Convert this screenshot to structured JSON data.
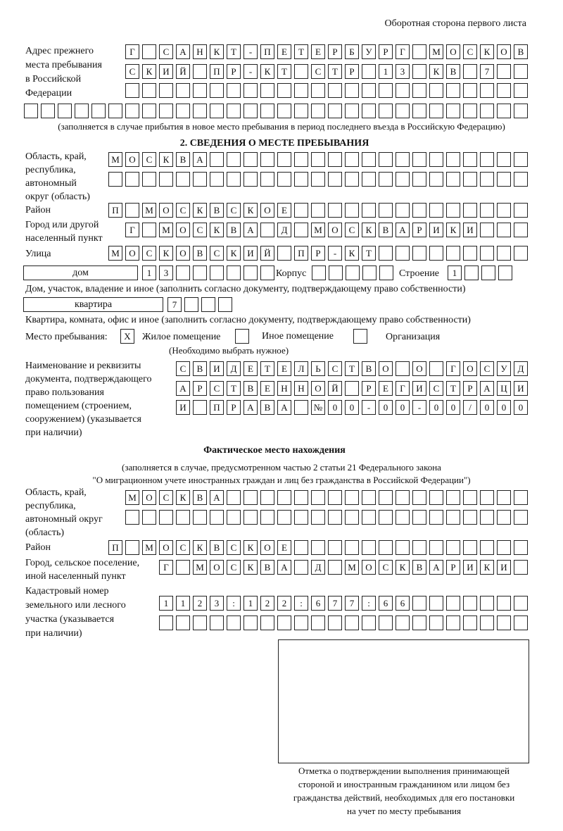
{
  "header": {
    "side_label": "Оборотная сторона первого листа"
  },
  "previous_address": {
    "label": [
      "Адрес прежнего",
      "места пребывания",
      "в Российской",
      "Федерации"
    ],
    "rows": [
      [
        "Г",
        "",
        "С",
        "А",
        "Н",
        "К",
        "Т",
        "-",
        "П",
        "Е",
        "Т",
        "Е",
        "Р",
        "Б",
        "У",
        "Р",
        "Г",
        "",
        "М",
        "О",
        "С",
        "К",
        "О",
        "В"
      ],
      [
        "С",
        "К",
        "И",
        "Й",
        "",
        "П",
        "Р",
        "-",
        "К",
        "Т",
        "",
        "С",
        "Т",
        "Р",
        "",
        "1",
        "3",
        "",
        "К",
        "В",
        "",
        "7",
        "",
        ""
      ],
      [
        "",
        "",
        "",
        "",
        "",
        "",
        "",
        "",
        "",
        "",
        "",
        "",
        "",
        "",
        "",
        "",
        "",
        "",
        "",
        "",
        "",
        "",
        "",
        ""
      ],
      [
        "",
        "",
        "",
        "",
        "",
        "",
        "",
        "",
        "",
        "",
        "",
        "",
        "",
        "",
        "",
        "",
        "",
        "",
        "",
        "",
        "",
        "",
        "",
        "",
        "",
        "",
        "",
        "",
        "",
        ""
      ]
    ],
    "note": "(заполняется в случае прибытия в новое место пребывания в период последнего въезда в Российскую Федерацию)"
  },
  "section2": {
    "title": "2. СВЕДЕНИЯ О МЕСТЕ ПРЕБЫВАНИЯ",
    "region_label": [
      "Область, край,",
      "республика,",
      "автономный",
      "округ (область)"
    ],
    "region_rows": [
      [
        "М",
        "О",
        "С",
        "К",
        "В",
        "А",
        "",
        "",
        "",
        "",
        "",
        "",
        "",
        "",
        "",
        "",
        "",
        "",
        "",
        "",
        "",
        "",
        "",
        "",
        ""
      ],
      [
        "",
        "",
        "",
        "",
        "",
        "",
        "",
        "",
        "",
        "",
        "",
        "",
        "",
        "",
        "",
        "",
        "",
        "",
        "",
        "",
        "",
        "",
        "",
        "",
        ""
      ]
    ],
    "district_label": "Район",
    "district_row": [
      "П",
      "",
      "М",
      "О",
      "С",
      "К",
      "В",
      "С",
      "К",
      "О",
      "Е",
      "",
      "",
      "",
      "",
      "",
      "",
      "",
      "",
      "",
      "",
      "",
      "",
      "",
      ""
    ],
    "city_label": [
      "Город или другой",
      "населенный пункт"
    ],
    "city_row": [
      "Г",
      "",
      "М",
      "О",
      "С",
      "К",
      "В",
      "А",
      "",
      "Д",
      "",
      "М",
      "О",
      "С",
      "К",
      "В",
      "А",
      "Р",
      "И",
      "К",
      "И",
      "",
      "",
      ""
    ],
    "street_label": "Улица",
    "street_row": [
      "М",
      "О",
      "С",
      "К",
      "О",
      "В",
      "С",
      "К",
      "И",
      "Й",
      "",
      "П",
      "Р",
      "-",
      "К",
      "Т",
      "",
      "",
      "",
      "",
      "",
      "",
      "",
      "",
      ""
    ],
    "house_type": "дом",
    "house_cells": [
      "1",
      "3",
      "",
      "",
      "",
      "",
      "",
      ""
    ],
    "korpus_label": "Корпус",
    "korpus_cells": [
      "",
      "",
      "",
      "",
      ""
    ],
    "building_label": "Строение",
    "building_cells": [
      "1",
      "",
      "",
      ""
    ],
    "house_note": "Дом, участок, владение и иное (заполнить согласно документу, подтверждающему право собственности)",
    "apt_type": "квартира",
    "apt_cells": [
      "7",
      "",
      "",
      ""
    ],
    "apt_note": "Квартира, комната, офис и иное (заполнить согласно документу, подтверждающему право собственности)",
    "stay_label": "Место пребывания:",
    "stay_options": [
      {
        "mark": "X",
        "label": "Жилое помещение"
      },
      {
        "mark": "",
        "label": "Иное помещение"
      },
      {
        "mark": "",
        "label": "Организация"
      }
    ],
    "stay_note": "(Необходимо выбрать нужное)",
    "doc_label": [
      "Наименование и реквизиты",
      "документа, подтверждающего",
      "право пользования",
      "помещением (строением,",
      "сооружением) (указывается",
      "при наличии)"
    ],
    "doc_rows": [
      [
        "С",
        "В",
        "И",
        "Д",
        "Е",
        "Т",
        "Е",
        "Л",
        "Ь",
        "С",
        "Т",
        "В",
        "О",
        "",
        "О",
        "",
        "Г",
        "О",
        "С",
        "У",
        "Д"
      ],
      [
        "А",
        "Р",
        "С",
        "Т",
        "В",
        "Е",
        "Н",
        "Н",
        "О",
        "Й",
        "",
        "Р",
        "Е",
        "Г",
        "И",
        "С",
        "Т",
        "Р",
        "А",
        "Ц",
        "И"
      ],
      [
        "И",
        "",
        "П",
        "Р",
        "А",
        "В",
        "А",
        "",
        "№",
        "0",
        "0",
        "-",
        "0",
        "0",
        "-",
        "0",
        "0",
        "/",
        "0",
        "0",
        "0"
      ]
    ]
  },
  "actual": {
    "title": "Фактическое место нахождения",
    "note": [
      "(заполняется в случае, предусмотренном частью 2 статьи 21 Федерального закона",
      "\"О миграционном учете иностранных граждан и лиц без гражданства в Российской Федерации\")"
    ],
    "region_label": [
      "Область, край,",
      "республика,",
      "автономный округ",
      "(область)"
    ],
    "region_rows": [
      [
        "М",
        "О",
        "С",
        "К",
        "В",
        "А",
        "",
        "",
        "",
        "",
        "",
        "",
        "",
        "",
        "",
        "",
        "",
        "",
        "",
        "",
        "",
        "",
        "",
        ""
      ],
      [
        "",
        "",
        "",
        "",
        "",
        "",
        "",
        "",
        "",
        "",
        "",
        "",
        "",
        "",
        "",
        "",
        "",
        "",
        "",
        "",
        "",
        "",
        "",
        ""
      ]
    ],
    "district_label": "Район",
    "district_row": [
      "П",
      "",
      "М",
      "О",
      "С",
      "К",
      "В",
      "С",
      "К",
      "О",
      "Е",
      "",
      "",
      "",
      "",
      "",
      "",
      "",
      "",
      "",
      "",
      "",
      "",
      "",
      ""
    ],
    "city_label": [
      "Город, сельское поселение,",
      "иной населенный пункт"
    ],
    "city_row": [
      "Г",
      "",
      "М",
      "О",
      "С",
      "К",
      "В",
      "А",
      "",
      "Д",
      "",
      "М",
      "О",
      "С",
      "К",
      "В",
      "А",
      "Р",
      "И",
      "К",
      "И",
      ""
    ],
    "cadastral_label": [
      "Кадастровый номер",
      "земельного или лесного",
      "участка (указывается",
      "при наличии)"
    ],
    "cadastral_rows": [
      [
        "1",
        "1",
        "2",
        "3",
        ":",
        "1",
        "2",
        "2",
        ":",
        "6",
        "7",
        "7",
        ":",
        "6",
        "6",
        "",
        "",
        "",
        "",
        "",
        "",
        ""
      ],
      [
        "",
        "",
        "",
        "",
        "",
        "",
        "",
        "",
        "",
        "",
        "",
        "",
        "",
        "",
        "",
        "",
        "",
        "",
        "",
        "",
        "",
        ""
      ]
    ]
  },
  "stamp": {
    "caption": [
      "Отметка о подтверждении выполнения принимающей",
      "стороной и иностранным гражданином или лицом без",
      "гражданства действий, необходимых для его постановки",
      "на учет по месту пребывания"
    ]
  }
}
